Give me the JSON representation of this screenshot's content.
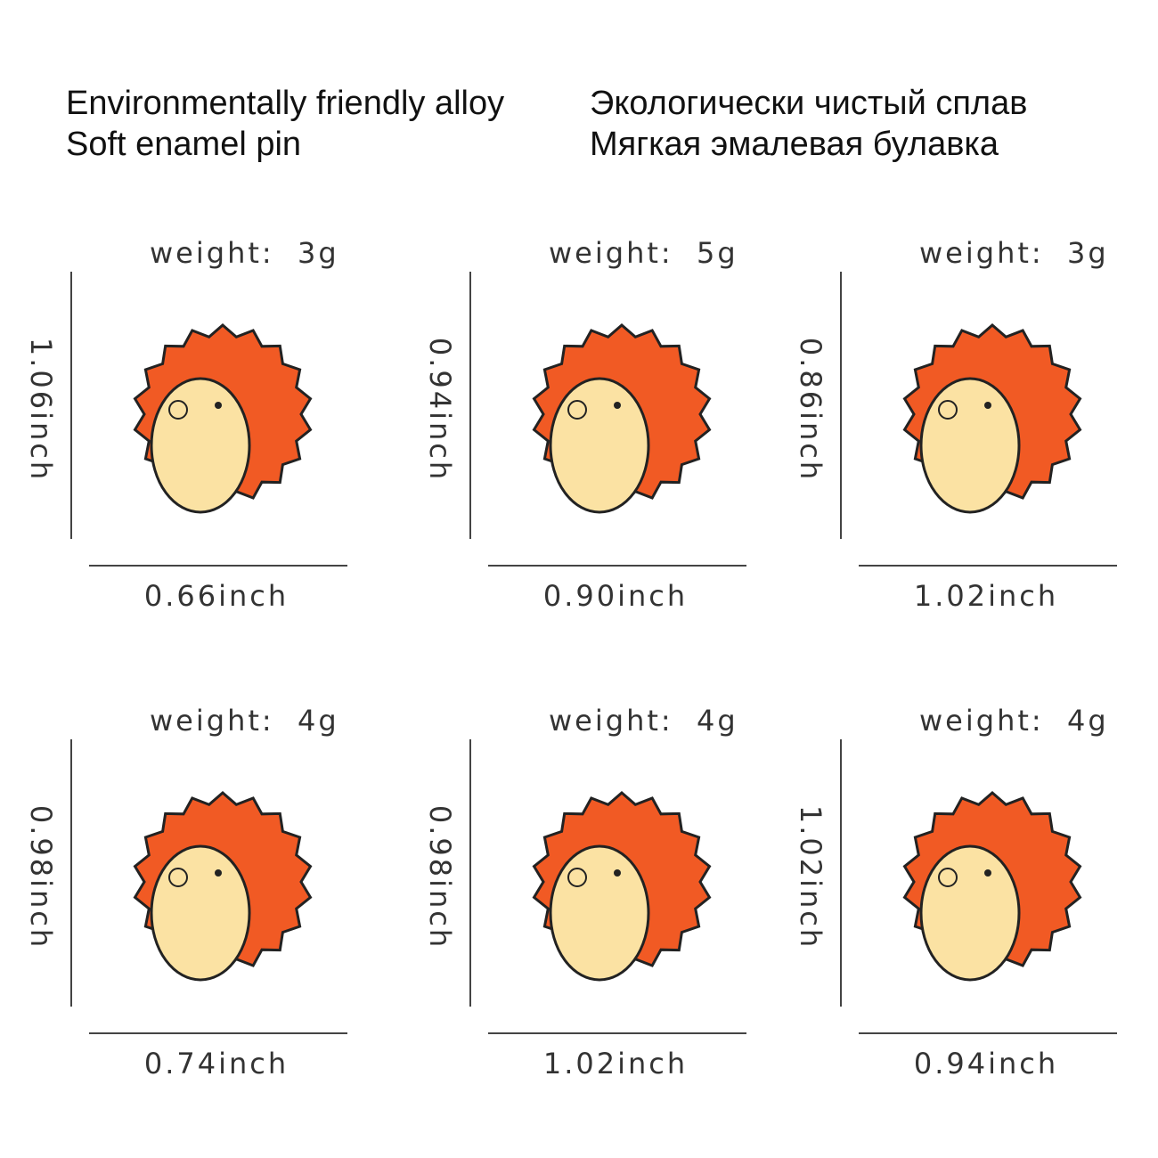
{
  "header": {
    "left": [
      "Environmentally friendly alloy",
      "Soft enamel pin"
    ],
    "right": [
      "Экологически чистый сплав",
      "Мягкая эмалевая булавка"
    ]
  },
  "items": [
    {
      "weight": "weight:  3g",
      "height": "1.06inch",
      "width": "0.66inch"
    },
    {
      "weight": "weight:  5g",
      "height": "0.94inch",
      "width": "0.90inch"
    },
    {
      "weight": "weight:  3g",
      "height": "0.86inch",
      "width": "1.02inch"
    },
    {
      "weight": "weight:  4g",
      "height": "0.98inch",
      "width": "0.74inch"
    },
    {
      "weight": "weight:  4g",
      "height": "0.98inch",
      "width": "1.02inch"
    },
    {
      "weight": "weight:  4g",
      "height": "1.02inch",
      "width": "0.94inch"
    }
  ]
}
